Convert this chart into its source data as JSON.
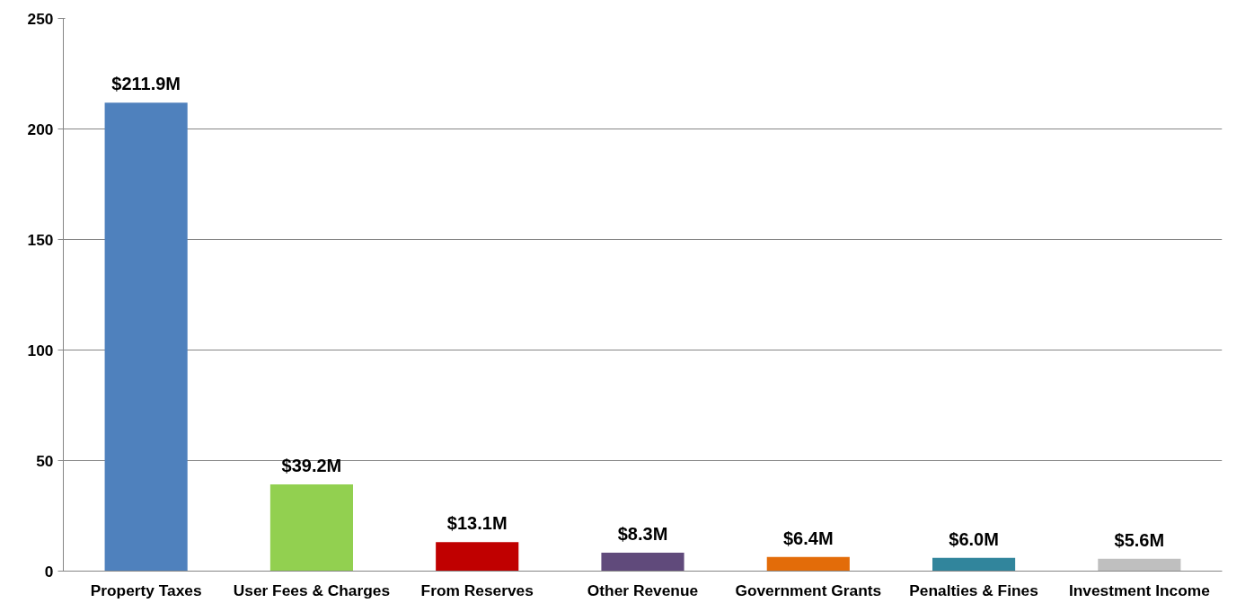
{
  "chart_data": {
    "type": "bar",
    "categories": [
      "Property Taxes",
      "User Fees & Charges",
      "From Reserves",
      "Other Revenue",
      "Government Grants",
      "Penalties & Fines",
      "Investment Income"
    ],
    "values": [
      211.9,
      39.2,
      13.1,
      8.3,
      6.4,
      6.0,
      5.6
    ],
    "colors": [
      "#4f81bd",
      "#92d050",
      "#c00000",
      "#604a7b",
      "#e36c09",
      "#31859c",
      "#bfbfbf"
    ],
    "value_labels": [
      "$211.9M",
      "$39.2M",
      "$13.1M",
      "$8.3M",
      "$6.4M",
      "$6.0M",
      "$5.6M"
    ],
    "ylim": [
      0,
      250
    ],
    "yticks": [
      0,
      50,
      100,
      150,
      200,
      250
    ],
    "grid": "y"
  }
}
